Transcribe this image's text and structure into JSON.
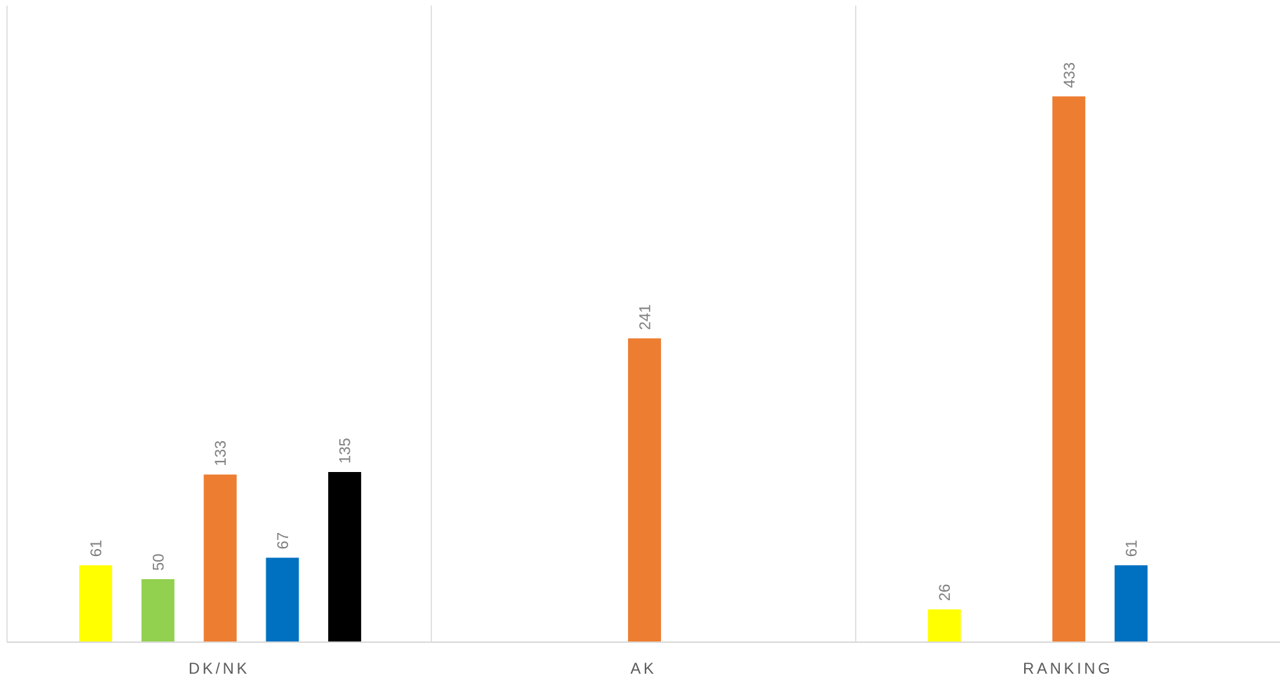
{
  "chart_data": {
    "type": "bar",
    "categories": [
      "DK/NK",
      "AK",
      "RANKING"
    ],
    "slots": 5,
    "series": [
      {
        "color": "#FFFF00",
        "values": [
          61,
          null,
          26
        ]
      },
      {
        "color": "#92D050",
        "values": [
          50,
          null,
          null
        ]
      },
      {
        "color": "#ED7D31",
        "values": [
          133,
          241,
          433
        ]
      },
      {
        "color": "#0070C0",
        "values": [
          67,
          null,
          61
        ]
      },
      {
        "color": "#000000",
        "values": [
          135,
          null,
          null
        ]
      }
    ],
    "ylim": [
      0,
      500
    ],
    "title": "",
    "xlabel": "",
    "ylabel": "",
    "grid": false,
    "category_separators": true,
    "data_labels": "vertical, above bars"
  }
}
